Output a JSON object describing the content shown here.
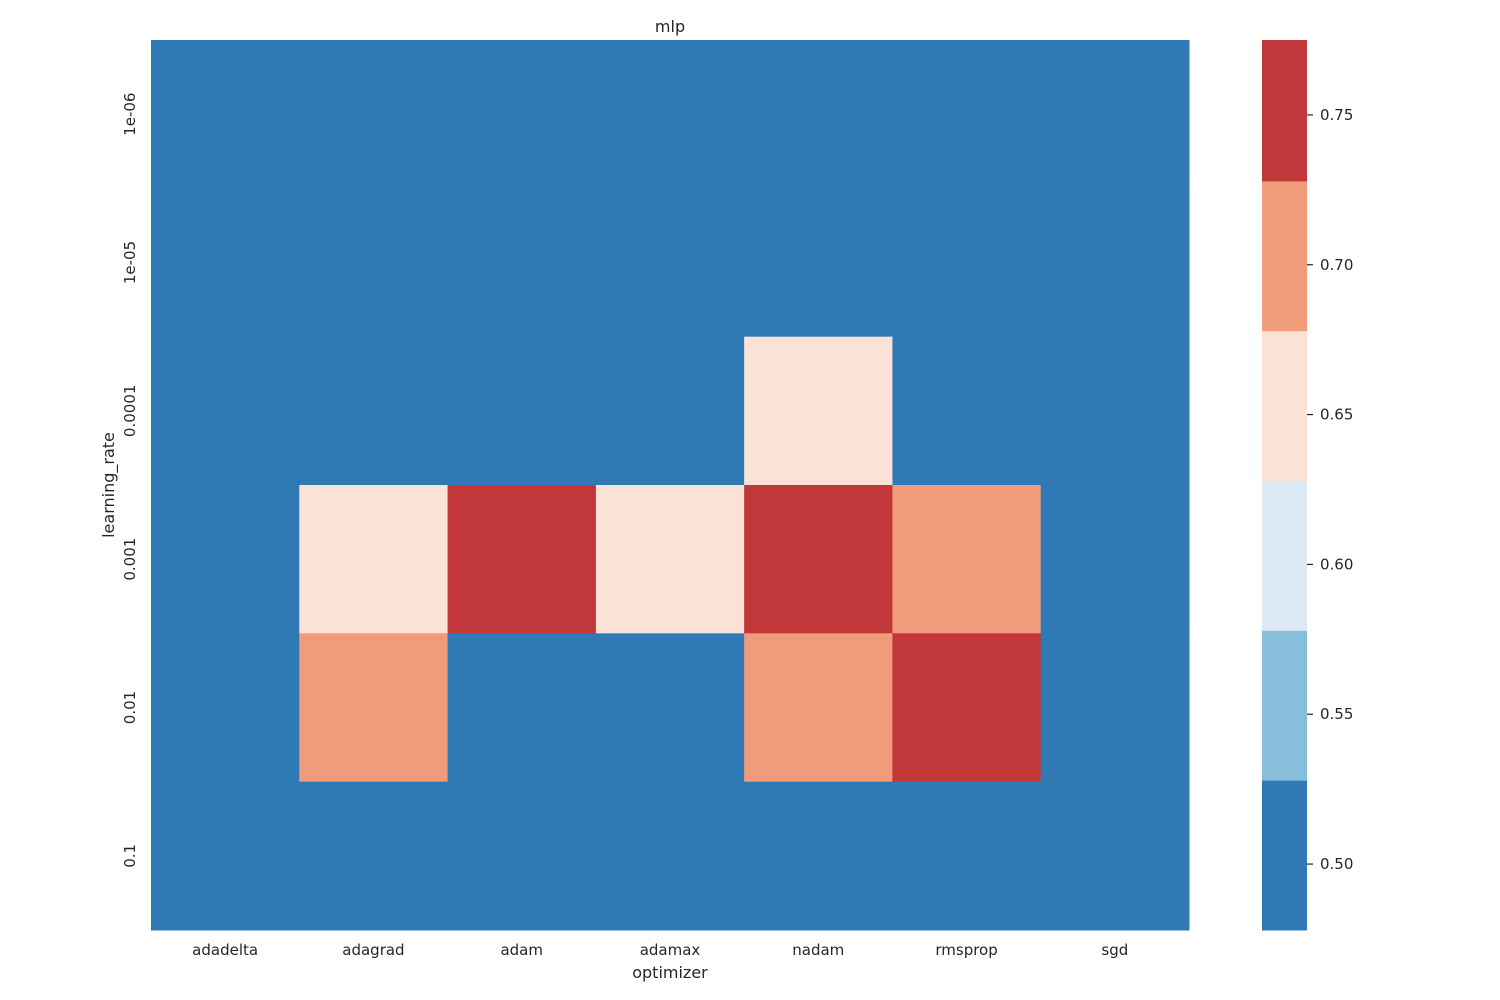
{
  "chart_data": {
    "type": "heatmap",
    "title": "mlp",
    "xlabel": "optimizer",
    "ylabel": "learning_rate",
    "x_categories": [
      "adadelta",
      "adagrad",
      "adam",
      "adamax",
      "nadam",
      "rmsprop",
      "sgd"
    ],
    "y_categories": [
      "1e-06",
      "1e-05",
      "0.0001",
      "0.001",
      "0.01",
      "0.1"
    ],
    "values": [
      [
        0.5,
        0.5,
        0.5,
        0.5,
        0.5,
        0.5,
        0.5
      ],
      [
        0.5,
        0.5,
        0.5,
        0.5,
        0.5,
        0.5,
        0.5
      ],
      [
        0.5,
        0.5,
        0.5,
        0.5,
        0.65,
        0.5,
        0.5
      ],
      [
        0.5,
        0.65,
        0.75,
        0.65,
        0.75,
        0.7,
        0.5
      ],
      [
        0.5,
        0.7,
        0.5,
        0.5,
        0.7,
        0.75,
        0.5
      ],
      [
        0.5,
        0.5,
        0.5,
        0.5,
        0.5,
        0.5,
        0.5
      ]
    ],
    "colorbar": {
      "range": [
        0.478,
        0.775
      ],
      "ticks": [
        0.5,
        0.55,
        0.6,
        0.65,
        0.7,
        0.75
      ],
      "tick_labels": [
        "0.50",
        "0.55",
        "0.60",
        "0.65",
        "0.70",
        "0.75"
      ],
      "bins": [
        {
          "min": 0.478,
          "max": 0.528,
          "color": "#2f79b5"
        },
        {
          "min": 0.528,
          "max": 0.578,
          "color": "#87beda"
        },
        {
          "min": 0.578,
          "max": 0.628,
          "color": "#dbe9f2"
        },
        {
          "min": 0.628,
          "max": 0.678,
          "color": "#fae3d6"
        },
        {
          "min": 0.678,
          "max": 0.728,
          "color": "#f09c7b"
        },
        {
          "min": 0.728,
          "max": 0.775,
          "color": "#c2373a"
        }
      ]
    }
  }
}
